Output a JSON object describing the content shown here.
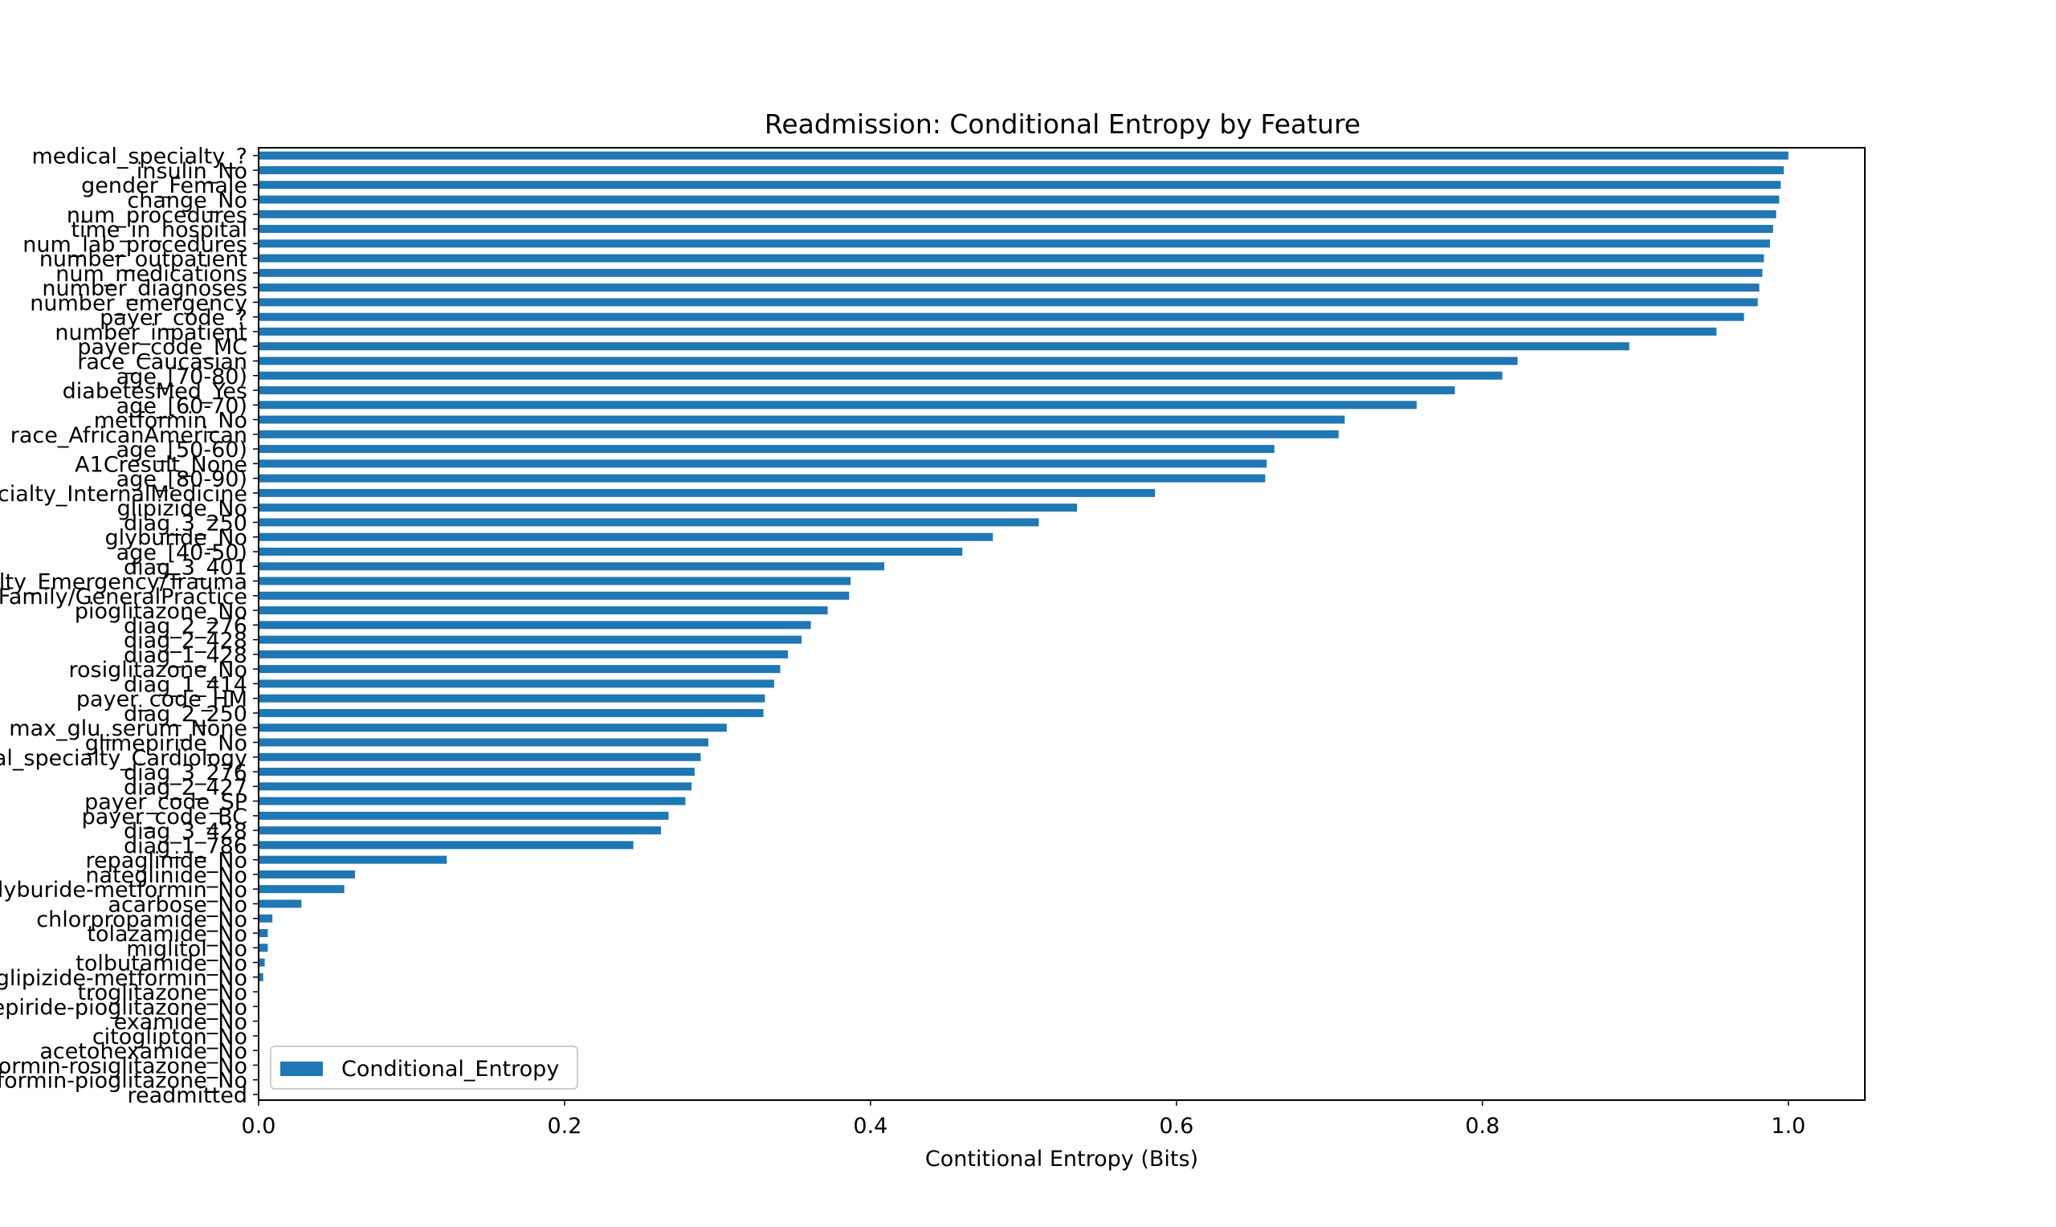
{
  "chart_data": {
    "type": "bar",
    "orientation": "horizontal",
    "title": "Readmission: Conditional Entropy by Feature",
    "xlabel": "Contitional Entropy (Bits)",
    "ylabel": "",
    "xlim": [
      0,
      1.05
    ],
    "xticks": [
      0.0,
      0.2,
      0.4,
      0.6,
      0.8,
      1.0
    ],
    "xtick_labels": [
      "0.0",
      "0.2",
      "0.4",
      "0.6",
      "0.8",
      "1.0"
    ],
    "grid": false,
    "legend_position": "lower-left",
    "bar_color": "#1f77b4",
    "series": [
      {
        "name": "Conditional_Entropy",
        "categories": [
          "medical_specialty_?",
          "insulin_No",
          "gender_Female",
          "change_No",
          "num_procedures",
          "time_in_hospital",
          "num_lab_procedures",
          "number_outpatient",
          "num_medications",
          "number_diagnoses",
          "number_emergency",
          "payer_code_?",
          "number_inpatient",
          "payer_code_MC",
          "race_Caucasian",
          "age_[70-80)",
          "diabetesMed_Yes",
          "age_[60-70)",
          "metformin_No",
          "race_AfricanAmerican",
          "age_[50-60)",
          "A1Cresult_None",
          "age_[80-90)",
          "medical_specialty_InternalMedicine",
          "glipizide_No",
          "diag_3_250",
          "glyburide_No",
          "age_[40-50)",
          "diag_3_401",
          "medical_specialty_Emergency/Trauma",
          "medical_specialty_Family/GeneralPractice",
          "pioglitazone_No",
          "diag_2_276",
          "diag_2_428",
          "diag_1_428",
          "rosiglitazone_No",
          "diag_1_414",
          "payer_code_HM",
          "diag_2_250",
          "max_glu_serum_None",
          "glimepiride_No",
          "medical_specialty_Cardiology",
          "diag_3_276",
          "diag_2_427",
          "payer_code_SP",
          "payer_code_BC",
          "diag_3_428",
          "diag_1_786",
          "repaglinide_No",
          "nateglinide_No",
          "glyburide-metformin_No",
          "acarbose_No",
          "chlorpropamide_No",
          "tolazamide_No",
          "miglitol_No",
          "tolbutamide_No",
          "glipizide-metformin_No",
          "troglitazone_No",
          "glimepiride-pioglitazone_No",
          "examide_No",
          "citoglipton_No",
          "acetohexamide_No",
          "metformin-rosiglitazone_No",
          "metformin-pioglitazone_No",
          "readmitted"
        ],
        "values": [
          1.0,
          0.997,
          0.995,
          0.994,
          0.992,
          0.99,
          0.988,
          0.984,
          0.983,
          0.981,
          0.98,
          0.971,
          0.953,
          0.896,
          0.823,
          0.813,
          0.782,
          0.757,
          0.71,
          0.706,
          0.664,
          0.659,
          0.658,
          0.586,
          0.535,
          0.51,
          0.48,
          0.46,
          0.409,
          0.387,
          0.386,
          0.372,
          0.361,
          0.355,
          0.346,
          0.341,
          0.337,
          0.331,
          0.33,
          0.306,
          0.294,
          0.289,
          0.285,
          0.283,
          0.279,
          0.268,
          0.263,
          0.245,
          0.123,
          0.063,
          0.056,
          0.028,
          0.009,
          0.006,
          0.006,
          0.004,
          0.003,
          0.0,
          0.0,
          0.0,
          0.0,
          0.0,
          0.0,
          0.0,
          0.0
        ]
      }
    ]
  }
}
